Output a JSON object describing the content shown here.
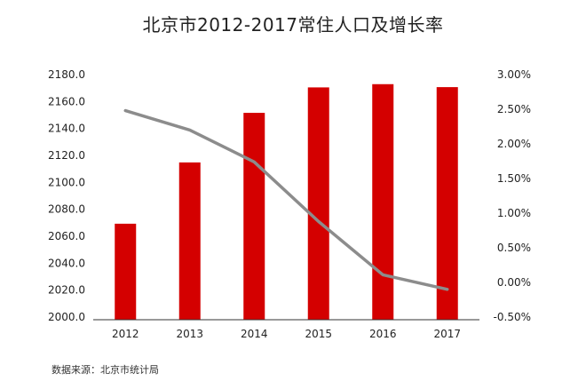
{
  "chart_data": {
    "type": "bar",
    "title": "北京市2012-2017常住人口及增长率",
    "source": "数据来源：北京市统计局",
    "categories": [
      "2012",
      "2013",
      "2014",
      "2015",
      "2016",
      "2017"
    ],
    "series": [
      {
        "type": "bar",
        "axis": "left",
        "color": "#d40000",
        "values": [
          2069.3,
          2114.8,
          2151.6,
          2170.5,
          2172.9,
          2170.7
        ]
      },
      {
        "type": "line",
        "axis": "right",
        "color": "#8c8c8c",
        "values": [
          2.48,
          2.2,
          1.74,
          0.88,
          0.11,
          -0.1
        ]
      }
    ],
    "y_left": {
      "min": 2000,
      "max": 2180,
      "ticks": [
        "2000.0",
        "2020.0",
        "2040.0",
        "2060.0",
        "2080.0",
        "2100.0",
        "2120.0",
        "2140.0",
        "2160.0",
        "2180.0"
      ]
    },
    "y_right": {
      "min": -0.5,
      "max": 3.0,
      "ticks": [
        "-0.50%",
        "0.00%",
        "0.50%",
        "1.00%",
        "1.50%",
        "2.00%",
        "2.50%",
        "3.00%"
      ]
    },
    "grid": false,
    "legend": "none"
  }
}
